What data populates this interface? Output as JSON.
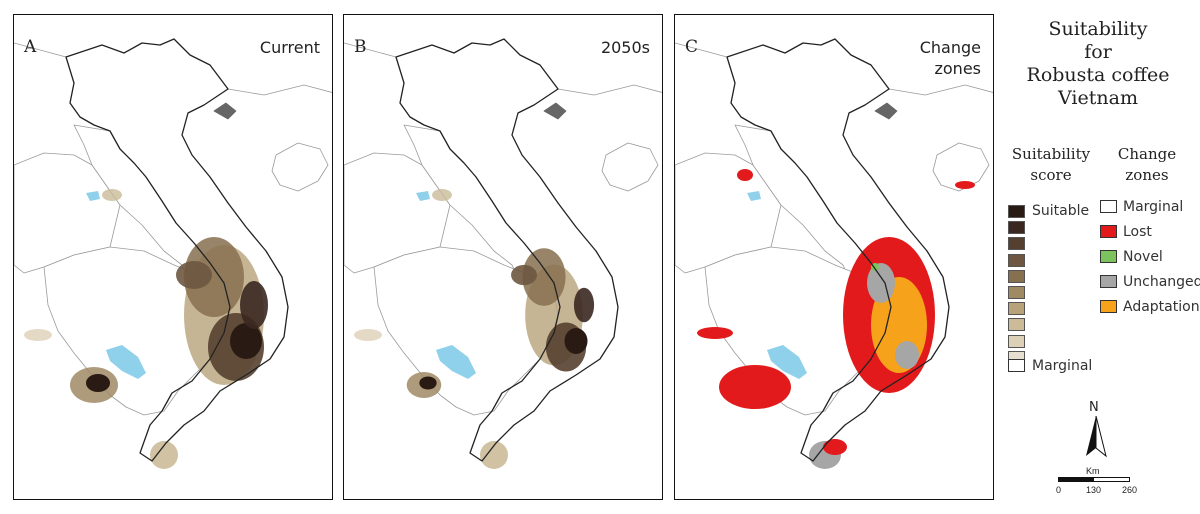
{
  "panels": [
    {
      "letter": "A",
      "title_lines": [
        "Current"
      ],
      "mode": "current"
    },
    {
      "letter": "B",
      "title_lines": [
        "2050s"
      ],
      "mode": "future"
    },
    {
      "letter": "C",
      "title_lines": [
        "Change",
        "zones"
      ],
      "mode": "change"
    }
  ],
  "legend": {
    "title_lines": [
      "Suitability",
      "for",
      "Robusta coffee",
      "Vietnam"
    ],
    "score_header_lines": [
      "Suitability",
      "score"
    ],
    "zones_header_lines": [
      "Change",
      "zones"
    ],
    "suitable_label": "Suitable",
    "marginal_label": "Marginal",
    "score_colors": [
      "#2a1a14",
      "#3a2820",
      "#55402f",
      "#6e5640",
      "#86704f",
      "#a08a64",
      "#b8a27a",
      "#cbbb98",
      "#dcd0b6",
      "#e6dfd0"
    ],
    "zones": [
      {
        "label": "Marginal",
        "color": "#ffffff"
      },
      {
        "label": "Lost",
        "color": "#e31a1c"
      },
      {
        "label": "Novel",
        "color": "#7cc25e"
      },
      {
        "label": "Unchanged",
        "color": "#a6a6a6"
      },
      {
        "label": "Adaptation",
        "color": "#f7a21b"
      }
    ]
  },
  "north_arrow": {
    "label": "N"
  },
  "scale_bar": {
    "unit": "Km",
    "ticks": [
      "0",
      "130",
      "260"
    ]
  }
}
